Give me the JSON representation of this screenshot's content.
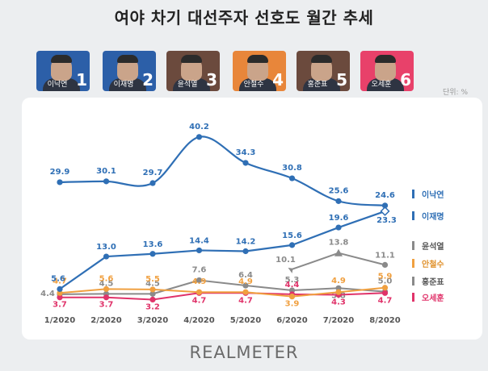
{
  "title": "여야 차기 대선주자 선호도 월간 추세",
  "unit": "단위: %",
  "logo": "REALMETER",
  "candidates": [
    {
      "name": "이낙연",
      "number": "1",
      "bg": "#2c5fa8"
    },
    {
      "name": "이재명",
      "number": "2",
      "bg": "#2c5fa8"
    },
    {
      "name": "윤석열",
      "number": "3",
      "bg": "#6b4a3d"
    },
    {
      "name": "안철수",
      "number": "4",
      "bg": "#e8863a"
    },
    {
      "name": "홍준표",
      "number": "5",
      "bg": "#6b4a3d"
    },
    {
      "name": "오세훈",
      "number": "6",
      "bg": "#e8416a"
    }
  ],
  "chart_data": {
    "type": "line",
    "categories": [
      "1/2020",
      "2/2020",
      "3/2020",
      "4/2020",
      "5/2020",
      "6/2020",
      "7/2020",
      "8/2020"
    ],
    "ylim": [
      2,
      42
    ],
    "series": [
      {
        "name": "이낙연",
        "color": "#2f6fb5",
        "smooth": true,
        "values": [
          29.9,
          30.1,
          29.7,
          40.2,
          34.3,
          30.8,
          25.6,
          24.6
        ],
        "labels": [
          "29.9",
          "30.1",
          "29.7",
          "40.2",
          "34.3",
          "30.8",
          "25.6",
          "24.6"
        ]
      },
      {
        "name": "이재명",
        "color": "#2f6fb5",
        "smooth": false,
        "values": [
          5.6,
          13.0,
          13.6,
          14.4,
          14.2,
          15.6,
          19.6,
          23.3
        ],
        "labels": [
          "5.6",
          "13.0",
          "13.6",
          "14.4",
          "14.2",
          "15.6",
          "19.6",
          "23.3"
        ]
      },
      {
        "name": "윤석열",
        "color": "#8a8a8a",
        "smooth": false,
        "start": 5,
        "values": [
          null,
          null,
          null,
          null,
          null,
          10.1,
          13.8,
          11.1
        ],
        "labels": [
          "",
          "",
          "",
          "",
          "",
          "10.1",
          "13.8",
          "11.1"
        ]
      },
      {
        "name": "안철수",
        "color": "#f0a040",
        "smooth": false,
        "values": [
          4.7,
          5.6,
          5.5,
          4.9,
          4.9,
          3.9,
          4.9,
          5.9
        ],
        "labels": [
          "4.7",
          "5.6",
          "5.5",
          "4.9",
          "4.9",
          "3.9",
          "4.9",
          "5.9"
        ]
      },
      {
        "name": "홍준표",
        "color": "#8a8a8a",
        "smooth": false,
        "values": [
          4.4,
          4.5,
          4.5,
          7.6,
          6.4,
          5.3,
          5.8,
          5.0
        ],
        "labels": [
          "4.4",
          "4.5",
          "4.5",
          "7.6",
          "6.4",
          "5.3",
          "5.8",
          "5.0"
        ]
      },
      {
        "name": "오세훈",
        "color": "#e0336a",
        "smooth": false,
        "values": [
          3.7,
          3.7,
          3.2,
          4.7,
          4.7,
          4.4,
          4.3,
          4.7
        ],
        "labels": [
          "3.7",
          "3.7",
          "3.2",
          "4.7",
          "4.7",
          "4.4",
          "4.3",
          "4.7"
        ]
      }
    ],
    "legend": [
      {
        "name": "이낙연",
        "color": "#2f6fb5",
        "text_color": "#2f6fb5"
      },
      {
        "name": "이재명",
        "color": "#2f6fb5",
        "text_color": "#2f6fb5"
      },
      {
        "name": "윤석열",
        "color": "#8a8a8a",
        "text_color": "#555555"
      },
      {
        "name": "안철수",
        "color": "#f0a040",
        "text_color": "#e0922e"
      },
      {
        "name": "홍준표",
        "color": "#8a8a8a",
        "text_color": "#555555"
      },
      {
        "name": "오세훈",
        "color": "#e0336a",
        "text_color": "#e0336a"
      }
    ]
  }
}
